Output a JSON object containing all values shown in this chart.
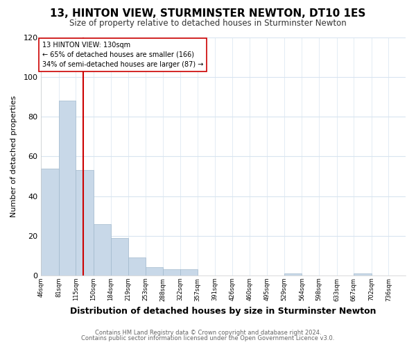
{
  "title": "13, HINTON VIEW, STURMINSTER NEWTON, DT10 1ES",
  "subtitle": "Size of property relative to detached houses in Sturminster Newton",
  "xlabel": "Distribution of detached houses by size in Sturminster Newton",
  "ylabel": "Number of detached properties",
  "footnote1": "Contains HM Land Registry data © Crown copyright and database right 2024.",
  "footnote2": "Contains public sector information licensed under the Open Government Licence v3.0.",
  "bin_labels": [
    "46sqm",
    "81sqm",
    "115sqm",
    "150sqm",
    "184sqm",
    "219sqm",
    "253sqm",
    "288sqm",
    "322sqm",
    "357sqm",
    "391sqm",
    "426sqm",
    "460sqm",
    "495sqm",
    "529sqm",
    "564sqm",
    "598sqm",
    "633sqm",
    "667sqm",
    "702sqm",
    "736sqm"
  ],
  "bar_values": [
    54,
    88,
    53,
    26,
    19,
    9,
    4,
    3,
    3,
    0,
    0,
    0,
    0,
    0,
    1,
    0,
    0,
    0,
    1,
    0,
    0
  ],
  "bar_color": "#c8d8e8",
  "bar_edge_color": "#a0b8cc",
  "vline_x": 130,
  "vline_color": "#cc0000",
  "annotation_text": "13 HINTON VIEW: 130sqm\n← 65% of detached houses are smaller (166)\n34% of semi-detached houses are larger (87) →",
  "annotation_box_color": "#ffffff",
  "annotation_box_edge": "#cc0000",
  "ylim": [
    0,
    120
  ],
  "yticks": [
    0,
    20,
    40,
    60,
    80,
    100,
    120
  ],
  "fig_bg_color": "#ffffff",
  "plot_bg_color": "#ffffff",
  "grid_color": "#d8e4f0",
  "bin_edges": [
    46,
    81,
    115,
    150,
    184,
    219,
    253,
    288,
    322,
    357,
    391,
    426,
    460,
    495,
    529,
    564,
    598,
    633,
    667,
    702,
    736,
    770
  ]
}
